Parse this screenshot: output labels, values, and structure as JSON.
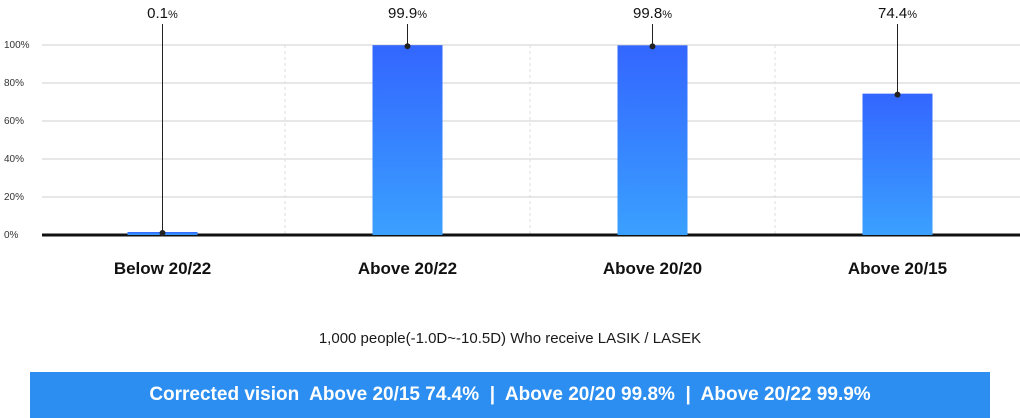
{
  "chart_data": {
    "type": "bar",
    "categories": [
      "Below 20/22",
      "Above 20/22",
      "Above 20/20",
      "Above 20/15"
    ],
    "values": [
      0.1,
      99.9,
      99.8,
      74.4
    ],
    "value_labels": [
      "0.1",
      "99.9",
      "99.8",
      "74.4"
    ],
    "value_unit": "%",
    "yticks": [
      "0%",
      "20%",
      "40%",
      "60%",
      "80%",
      "100%"
    ],
    "ylim": [
      0,
      100
    ],
    "grid": true,
    "bar_color_top": "#3366ff",
    "bar_color_bottom": "#3aa0ff"
  },
  "subtitle": "1,000 people(-1.0D~-10.5D) Who receive LASIK / LASEK",
  "banner": {
    "text": "Corrected vision  Above 20/15 74.4%  |  Above 20/20 99.8%  |  Above 20/22 99.9%",
    "background": "#2b8ef0"
  }
}
